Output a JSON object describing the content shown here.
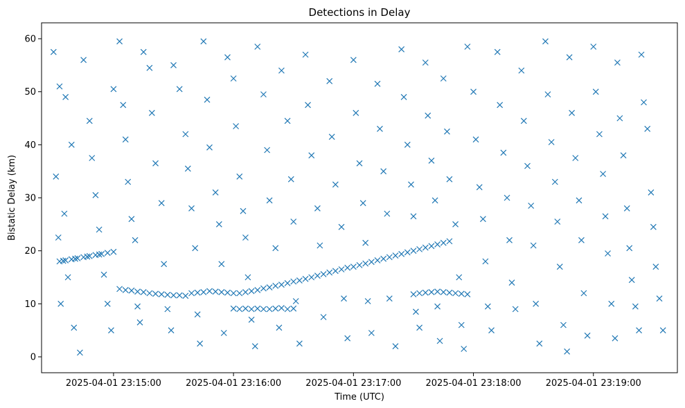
{
  "chart_data": {
    "type": "scatter",
    "title": "Detections in Delay",
    "xlabel": "Time (UTC)",
    "ylabel": "Bistatic Delay (km)",
    "marker": "x",
    "color": "#1f77b4",
    "x_unit": "minutes after 2025-04-01 23:15:00",
    "xlim": [
      -0.6,
      4.7
    ],
    "ylim": [
      -3,
      63
    ],
    "x_ticks": [
      {
        "value": 0,
        "label": "2025-04-01 23:15:00"
      },
      {
        "value": 1,
        "label": "2025-04-01 23:16:00"
      },
      {
        "value": 2,
        "label": "2025-04-01 23:17:00"
      },
      {
        "value": 3,
        "label": "2025-04-01 23:18:00"
      },
      {
        "value": 4,
        "label": "2025-04-01 23:19:00"
      }
    ],
    "y_ticks": [
      {
        "value": 0,
        "label": "0"
      },
      {
        "value": 10,
        "label": "10"
      },
      {
        "value": 20,
        "label": "20"
      },
      {
        "value": 30,
        "label": "30"
      },
      {
        "value": 40,
        "label": "40"
      },
      {
        "value": 50,
        "label": "50"
      },
      {
        "value": 60,
        "label": "60"
      }
    ],
    "series": [
      {
        "name": "track-rising-early",
        "points": [
          [
            -0.45,
            18.0
          ],
          [
            -0.4,
            18.2
          ],
          [
            -0.35,
            18.4
          ],
          [
            -0.3,
            18.6
          ],
          [
            -0.25,
            18.8
          ],
          [
            -0.2,
            19.0
          ],
          [
            -0.15,
            19.2
          ],
          [
            -0.1,
            19.4
          ],
          [
            -0.05,
            19.6
          ],
          [
            0.0,
            19.8
          ],
          [
            -0.42,
            18.1
          ],
          [
            -0.32,
            18.5
          ],
          [
            -0.22,
            18.9
          ],
          [
            -0.12,
            19.3
          ]
        ]
      },
      {
        "name": "track-descending-early",
        "points": [
          [
            0.05,
            12.8
          ],
          [
            0.1,
            12.6
          ],
          [
            0.15,
            12.5
          ],
          [
            0.2,
            12.3
          ],
          [
            0.25,
            12.2
          ],
          [
            0.3,
            12.0
          ],
          [
            0.35,
            11.9
          ],
          [
            0.4,
            11.8
          ],
          [
            0.45,
            11.7
          ],
          [
            0.5,
            11.6
          ],
          [
            0.55,
            11.6
          ],
          [
            0.6,
            11.5
          ],
          [
            0.65,
            12.0
          ],
          [
            0.7,
            12.1
          ],
          [
            0.75,
            12.2
          ]
        ]
      },
      {
        "name": "track-long-rising",
        "points": [
          [
            0.8,
            12.4
          ],
          [
            0.85,
            12.3
          ],
          [
            0.9,
            12.2
          ],
          [
            0.95,
            12.1
          ],
          [
            1.0,
            12.0
          ],
          [
            1.05,
            12.0
          ],
          [
            1.1,
            12.2
          ],
          [
            1.15,
            12.4
          ],
          [
            1.2,
            12.6
          ],
          [
            1.25,
            12.9
          ],
          [
            1.3,
            13.1
          ],
          [
            1.35,
            13.4
          ],
          [
            1.4,
            13.6
          ],
          [
            1.45,
            13.9
          ],
          [
            1.5,
            14.2
          ],
          [
            1.55,
            14.4
          ],
          [
            1.6,
            14.7
          ],
          [
            1.65,
            15.0
          ],
          [
            1.7,
            15.3
          ],
          [
            1.75,
            15.6
          ],
          [
            1.8,
            15.9
          ],
          [
            1.85,
            16.2
          ],
          [
            1.9,
            16.5
          ],
          [
            1.95,
            16.8
          ],
          [
            2.0,
            17.0
          ],
          [
            2.05,
            17.3
          ],
          [
            2.1,
            17.6
          ],
          [
            2.15,
            17.9
          ],
          [
            2.2,
            18.2
          ],
          [
            2.25,
            18.5
          ],
          [
            2.3,
            18.8
          ],
          [
            2.35,
            19.1
          ],
          [
            2.4,
            19.4
          ],
          [
            2.45,
            19.7
          ],
          [
            2.5,
            20.0
          ],
          [
            2.55,
            20.3
          ],
          [
            2.6,
            20.6
          ],
          [
            2.65,
            20.9
          ],
          [
            2.7,
            21.2
          ],
          [
            2.75,
            21.5
          ],
          [
            2.8,
            21.8
          ]
        ]
      },
      {
        "name": "track-cluster-late",
        "points": [
          [
            2.5,
            11.8
          ],
          [
            2.55,
            12.0
          ],
          [
            2.6,
            12.1
          ],
          [
            2.65,
            12.2
          ],
          [
            2.7,
            12.3
          ],
          [
            2.75,
            12.2
          ],
          [
            2.8,
            12.1
          ],
          [
            2.85,
            12.0
          ],
          [
            2.9,
            11.9
          ],
          [
            2.95,
            11.8
          ]
        ]
      },
      {
        "name": "band-9km",
        "points": [
          [
            1.0,
            9.1
          ],
          [
            1.05,
            9.0
          ],
          [
            1.1,
            9.1
          ],
          [
            1.15,
            9.0
          ],
          [
            1.2,
            9.1
          ],
          [
            1.25,
            9.0
          ],
          [
            1.3,
            9.0
          ],
          [
            1.35,
            9.1
          ],
          [
            1.4,
            9.2
          ],
          [
            1.45,
            9.0
          ],
          [
            1.5,
            9.1
          ]
        ]
      },
      {
        "name": "noise",
        "points": [
          [
            -0.5,
            57.5
          ],
          [
            -0.45,
            51.0
          ],
          [
            -0.4,
            49.0
          ],
          [
            -0.35,
            40.0
          ],
          [
            -0.48,
            34.0
          ],
          [
            -0.41,
            27.0
          ],
          [
            -0.46,
            22.5
          ],
          [
            -0.38,
            15.0
          ],
          [
            -0.44,
            10.0
          ],
          [
            -0.33,
            5.5
          ],
          [
            -0.28,
            0.8
          ],
          [
            -0.25,
            56.0
          ],
          [
            -0.2,
            44.5
          ],
          [
            -0.18,
            37.5
          ],
          [
            -0.15,
            30.5
          ],
          [
            -0.12,
            24.0
          ],
          [
            -0.08,
            15.5
          ],
          [
            -0.05,
            10.0
          ],
          [
            -0.02,
            5.0
          ],
          [
            0.0,
            50.5
          ],
          [
            0.05,
            59.5
          ],
          [
            0.08,
            47.5
          ],
          [
            0.1,
            41.0
          ],
          [
            0.12,
            33.0
          ],
          [
            0.15,
            26.0
          ],
          [
            0.18,
            22.0
          ],
          [
            0.2,
            9.5
          ],
          [
            0.22,
            6.5
          ],
          [
            0.25,
            57.5
          ],
          [
            0.3,
            54.5
          ],
          [
            0.32,
            46.0
          ],
          [
            0.35,
            36.5
          ],
          [
            0.4,
            29.0
          ],
          [
            0.42,
            17.5
          ],
          [
            0.45,
            9.0
          ],
          [
            0.48,
            5.0
          ],
          [
            0.5,
            55.0
          ],
          [
            0.55,
            50.5
          ],
          [
            0.6,
            42.0
          ],
          [
            0.62,
            35.5
          ],
          [
            0.65,
            28.0
          ],
          [
            0.68,
            20.5
          ],
          [
            0.7,
            8.0
          ],
          [
            0.72,
            2.5
          ],
          [
            0.75,
            59.5
          ],
          [
            0.78,
            48.5
          ],
          [
            0.8,
            39.5
          ],
          [
            0.85,
            31.0
          ],
          [
            0.88,
            25.0
          ],
          [
            0.9,
            17.5
          ],
          [
            0.92,
            4.5
          ],
          [
            0.95,
            56.5
          ],
          [
            1.0,
            52.5
          ],
          [
            1.02,
            43.5
          ],
          [
            1.05,
            34.0
          ],
          [
            1.08,
            27.5
          ],
          [
            1.1,
            22.5
          ],
          [
            1.12,
            15.0
          ],
          [
            1.15,
            7.0
          ],
          [
            1.18,
            2.0
          ],
          [
            1.2,
            58.5
          ],
          [
            1.25,
            49.5
          ],
          [
            1.28,
            39.0
          ],
          [
            1.3,
            29.5
          ],
          [
            1.35,
            20.5
          ],
          [
            1.38,
            5.5
          ],
          [
            1.4,
            54.0
          ],
          [
            1.45,
            44.5
          ],
          [
            1.48,
            33.5
          ],
          [
            1.5,
            25.5
          ],
          [
            1.52,
            10.5
          ],
          [
            1.55,
            2.5
          ],
          [
            1.6,
            57.0
          ],
          [
            1.62,
            47.5
          ],
          [
            1.65,
            38.0
          ],
          [
            1.7,
            28.0
          ],
          [
            1.72,
            21.0
          ],
          [
            1.75,
            7.5
          ],
          [
            1.8,
            52.0
          ],
          [
            1.82,
            41.5
          ],
          [
            1.85,
            32.5
          ],
          [
            1.9,
            24.5
          ],
          [
            1.92,
            11.0
          ],
          [
            1.95,
            3.5
          ],
          [
            2.0,
            56.0
          ],
          [
            2.02,
            46.0
          ],
          [
            2.05,
            36.5
          ],
          [
            2.08,
            29.0
          ],
          [
            2.1,
            21.5
          ],
          [
            2.12,
            10.5
          ],
          [
            2.15,
            4.5
          ],
          [
            2.2,
            51.5
          ],
          [
            2.22,
            43.0
          ],
          [
            2.25,
            35.0
          ],
          [
            2.28,
            27.0
          ],
          [
            2.3,
            11.0
          ],
          [
            2.35,
            2.0
          ],
          [
            2.4,
            58.0
          ],
          [
            2.42,
            49.0
          ],
          [
            2.45,
            40.0
          ],
          [
            2.48,
            32.5
          ],
          [
            2.5,
            26.5
          ],
          [
            2.52,
            8.5
          ],
          [
            2.55,
            5.5
          ],
          [
            2.6,
            55.5
          ],
          [
            2.62,
            45.5
          ],
          [
            2.65,
            37.0
          ],
          [
            2.68,
            29.5
          ],
          [
            2.7,
            9.5
          ],
          [
            2.72,
            3.0
          ],
          [
            2.75,
            52.5
          ],
          [
            2.78,
            42.5
          ],
          [
            2.8,
            33.5
          ],
          [
            2.85,
            25.0
          ],
          [
            2.88,
            15.0
          ],
          [
            2.9,
            6.0
          ],
          [
            2.92,
            1.5
          ],
          [
            2.95,
            58.5
          ],
          [
            3.0,
            50.0
          ],
          [
            3.02,
            41.0
          ],
          [
            3.05,
            32.0
          ],
          [
            3.08,
            26.0
          ],
          [
            3.1,
            18.0
          ],
          [
            3.12,
            9.5
          ],
          [
            3.15,
            5.0
          ],
          [
            3.2,
            57.5
          ],
          [
            3.22,
            47.5
          ],
          [
            3.25,
            38.5
          ],
          [
            3.28,
            30.0
          ],
          [
            3.3,
            22.0
          ],
          [
            3.32,
            14.0
          ],
          [
            3.35,
            9.0
          ],
          [
            3.4,
            54.0
          ],
          [
            3.42,
            44.5
          ],
          [
            3.45,
            36.0
          ],
          [
            3.48,
            28.5
          ],
          [
            3.5,
            21.0
          ],
          [
            3.52,
            10.0
          ],
          [
            3.55,
            2.5
          ],
          [
            3.6,
            59.5
          ],
          [
            3.62,
            49.5
          ],
          [
            3.65,
            40.5
          ],
          [
            3.68,
            33.0
          ],
          [
            3.7,
            25.5
          ],
          [
            3.72,
            17.0
          ],
          [
            3.75,
            6.0
          ],
          [
            3.78,
            1.0
          ],
          [
            3.8,
            56.5
          ],
          [
            3.82,
            46.0
          ],
          [
            3.85,
            37.5
          ],
          [
            3.88,
            29.5
          ],
          [
            3.9,
            22.0
          ],
          [
            3.92,
            12.0
          ],
          [
            3.95,
            4.0
          ],
          [
            4.0,
            58.5
          ],
          [
            4.02,
            50.0
          ],
          [
            4.05,
            42.0
          ],
          [
            4.08,
            34.5
          ],
          [
            4.1,
            26.5
          ],
          [
            4.12,
            19.5
          ],
          [
            4.15,
            10.0
          ],
          [
            4.18,
            3.5
          ],
          [
            4.2,
            55.5
          ],
          [
            4.22,
            45.0
          ],
          [
            4.25,
            38.0
          ],
          [
            4.28,
            28.0
          ],
          [
            4.3,
            20.5
          ],
          [
            4.32,
            14.5
          ],
          [
            4.35,
            9.5
          ],
          [
            4.38,
            5.0
          ],
          [
            4.4,
            57.0
          ],
          [
            4.42,
            48.0
          ],
          [
            4.45,
            43.0
          ],
          [
            4.48,
            31.0
          ],
          [
            4.5,
            24.5
          ],
          [
            4.52,
            17.0
          ],
          [
            4.55,
            11.0
          ],
          [
            4.58,
            5.0
          ]
        ]
      }
    ]
  }
}
